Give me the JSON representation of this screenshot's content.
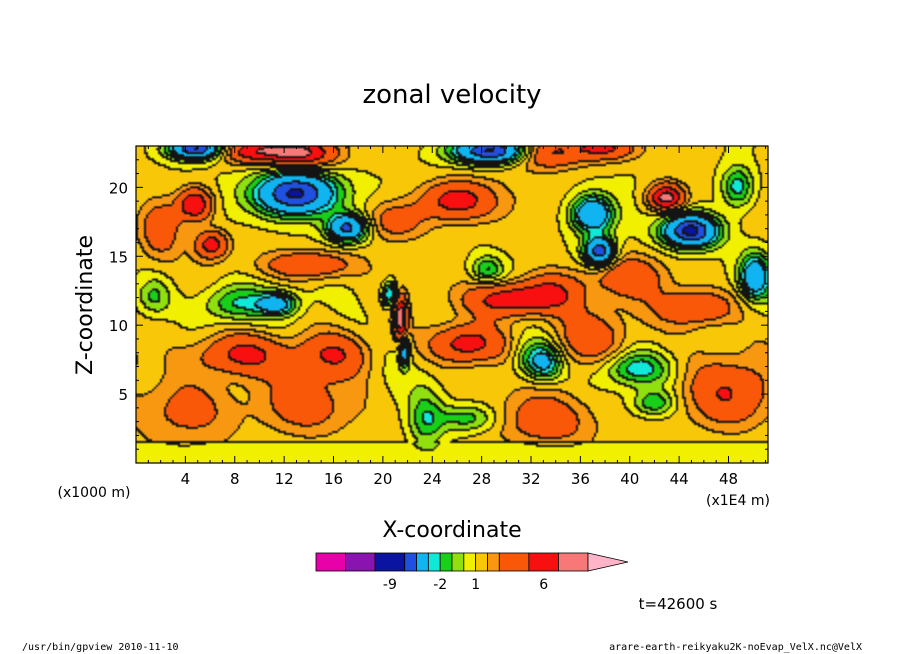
{
  "chart_data": {
    "type": "heatmap",
    "title": "zonal velocity",
    "xlabel": "X-coordinate",
    "ylabel": "Z-coordinate",
    "x_unit": "(x1E4 m)",
    "y_unit": "(x1000 m)",
    "xlim": [
      0,
      51.2
    ],
    "ylim": [
      0,
      23
    ],
    "x_ticks": [
      "4",
      "8",
      "12",
      "16",
      "20",
      "24",
      "28",
      "32",
      "36",
      "40",
      "44",
      "48"
    ],
    "x_tick_values": [
      4,
      8,
      12,
      16,
      20,
      24,
      28,
      32,
      36,
      40,
      44,
      48
    ],
    "y_ticks": [
      "5",
      "10",
      "15",
      "20"
    ],
    "y_tick_values": [
      5,
      10,
      15,
      20
    ],
    "grid": false,
    "colorbar": {
      "labels": [
        "-9",
        "-2",
        "1",
        "6"
      ],
      "label_positions": [
        -9,
        -2,
        1,
        6
      ],
      "levels": [
        -12,
        -10,
        -8,
        -6,
        -3,
        -2,
        -1,
        0,
        1,
        2,
        3,
        5,
        7,
        9
      ],
      "colors": [
        "#e800a8",
        "#8a14b0",
        "#0a14a0",
        "#2050e0",
        "#10b4f0",
        "#10e8d8",
        "#18d018",
        "#90e010",
        "#f0f000",
        "#f8c808",
        "#f89810",
        "#f85808",
        "#f81010",
        "#f87878",
        "#ffb4c8"
      ]
    },
    "time_label": "t=42600 s"
  },
  "footer": {
    "left": "/usr/bin/gpview   2010-11-10",
    "right": "arare-earth-reikyaku2K-noEvap_VelX.nc@VelX"
  }
}
